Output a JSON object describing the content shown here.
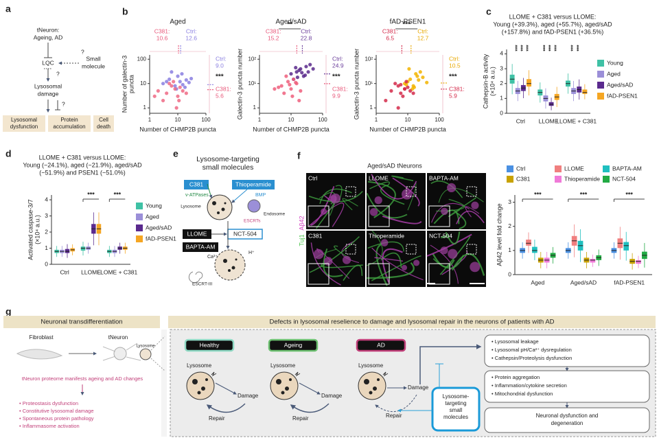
{
  "panel_labels": [
    "a",
    "b",
    "c",
    "d",
    "e",
    "f",
    "g"
  ],
  "a": {
    "top": [
      "tNeuron:",
      "Ageing, AD"
    ],
    "lqc": "LQC",
    "small_molecule": [
      "Small",
      "molecule"
    ],
    "damage": [
      "Lysosomal",
      "damage"
    ],
    "question_marks": [
      "?",
      "?",
      "?"
    ],
    "outcomes": [
      [
        "Lysosomal",
        "dysfunction"
      ],
      [
        "Protein",
        "accumulation"
      ],
      [
        "Cell",
        "death"
      ]
    ]
  },
  "chart_data": [
    {
      "type": "scatter",
      "title": "Aged",
      "x_label": "Number of CHMP2B puncta",
      "y_label": [
        "Number of galectin-3",
        "puncta"
      ],
      "xlog": true,
      "ylog": true,
      "xlim": [
        1,
        100
      ],
      "ylim": [
        0.6,
        150
      ],
      "xticks": [
        1,
        10,
        100
      ],
      "yticks": [
        1,
        10,
        100
      ],
      "top_annotations": [
        {
          "label": "C381:",
          "value": 10.6,
          "color": "#e8587a"
        },
        {
          "label": "Ctrl:",
          "value": 12.6,
          "color": "#8a7fe0"
        }
      ],
      "right_annotations": [
        {
          "label": "Ctrl:",
          "value": 9,
          "value_label": "9.0",
          "color": "#8a7fe0"
        },
        {
          "label": "C381:",
          "value": 5.6,
          "color": "#e8587a"
        }
      ],
      "right_stars": "***",
      "series": [
        {
          "color": "#8a7fe0",
          "x": [
            3,
            5,
            8,
            10,
            12,
            15,
            20,
            6,
            9,
            25,
            14,
            4,
            18,
            30
          ],
          "values": [
            10,
            15,
            8,
            20,
            12,
            9,
            14,
            30,
            6,
            11,
            25,
            12,
            7,
            16
          ]
        },
        {
          "color": "#ee6a85",
          "x": [
            2,
            4,
            6,
            8,
            10,
            12,
            3,
            5,
            15,
            9,
            7,
            20,
            1.5,
            11
          ],
          "values": [
            5,
            4,
            8,
            6,
            3,
            7,
            2,
            10,
            5,
            1,
            12,
            4,
            3,
            2
          ]
        }
      ]
    },
    {
      "type": "scatter",
      "title": "Aged/sAD",
      "x_label": "Number of CHMP2B puncta",
      "y_label": "Galectin-3 puncta number",
      "xlog": true,
      "ylog": true,
      "xlim": [
        1,
        100
      ],
      "ylim": [
        0.6,
        150
      ],
      "xticks": [
        1,
        10,
        100
      ],
      "yticks": [
        1,
        {
          "value": 10,
          "label": "10¹"
        },
        {
          "value": 100,
          "label": "10²"
        }
      ],
      "top_annotations": [
        {
          "label": "C381:",
          "value": 15.2,
          "color": "#e8587a"
        },
        {
          "label": "Ctrl:",
          "value": 22.8,
          "color": "#6a3d9a"
        }
      ],
      "top_stars": "**",
      "right_annotations": [
        {
          "label": "Ctrl:",
          "value": 24.9,
          "color": "#6a3d9a"
        },
        {
          "label": "C381:",
          "value": 9.9,
          "color": "#e8587a"
        }
      ],
      "right_stars": "***",
      "series": [
        {
          "color": "#5b2a8c",
          "x": [
            10,
            15,
            20,
            25,
            30,
            12,
            18,
            40,
            22,
            14,
            28,
            35,
            16,
            50
          ],
          "values": [
            25,
            30,
            40,
            20,
            50,
            15,
            35,
            60,
            28,
            45,
            22,
            30,
            18,
            40
          ]
        },
        {
          "color": "#ee5f7d",
          "x": [
            5,
            8,
            10,
            12,
            15,
            6,
            9,
            20,
            7,
            11,
            4,
            14,
            18,
            3
          ],
          "values": [
            8,
            12,
            6,
            15,
            10,
            4,
            9,
            5,
            20,
            3,
            7,
            11,
            2,
            6
          ]
        }
      ]
    },
    {
      "type": "scatter",
      "title": "fAD-PSEN1",
      "x_label": "Number of CHMP2B puncta",
      "y_label": "Galectin-3 puncta number",
      "xlog": true,
      "ylog": true,
      "xlim": [
        1,
        100
      ],
      "ylim": [
        0.6,
        150
      ],
      "xticks": [
        1,
        10,
        100
      ],
      "yticks": [
        1,
        {
          "value": 10,
          "label": "10¹"
        },
        {
          "value": 100,
          "label": "10²"
        }
      ],
      "top_annotations": [
        {
          "label": "C381:",
          "value": 6.5,
          "color": "#d42a4a"
        },
        {
          "label": "Ctrl:",
          "value": 12.7,
          "color": "#e8a800"
        }
      ],
      "top_stars": "***",
      "right_annotations": [
        {
          "label": "Ctrl:",
          "value": 10.5,
          "color": "#e8a800"
        },
        {
          "label": "C381:",
          "value": 5.9,
          "color": "#d42a4a"
        }
      ],
      "right_stars": "***",
      "series": [
        {
          "color": "#f2b400",
          "x": [
            8,
            12,
            15,
            20,
            10,
            25,
            30,
            14,
            18,
            9,
            22,
            40,
            11,
            16
          ],
          "values": [
            10,
            15,
            8,
            20,
            12,
            30,
            18,
            6,
            25,
            9,
            14,
            11,
            40,
            7
          ]
        },
        {
          "color": "#d42a4a",
          "x": [
            3,
            5,
            6,
            8,
            4,
            7,
            10,
            12,
            2,
            9,
            5,
            6,
            15,
            8
          ],
          "values": [
            5,
            8,
            4,
            6,
            10,
            3,
            7,
            5,
            2,
            12,
            1,
            9,
            4,
            6
          ]
        }
      ]
    },
    {
      "type": "box",
      "title": [
        "LLOME + C381 versus LLOME:",
        "Young (+39.3%), aged (+55.7%), aged/sAD",
        "(+157.8%) and fAD-PSEN1 (+36.5%)"
      ],
      "y_label": [
        "Cathepsin-B activity",
        "(×10⁴ a.u.)"
      ],
      "ylim": [
        0,
        4.3
      ],
      "yticks": [
        0,
        1,
        2,
        3,
        4
      ],
      "legend": "right",
      "categories": [
        "Ctrl",
        "LLOME",
        "LLOME + C381"
      ],
      "stars": [
        [
          "***",
          "***",
          "***"
        ],
        [
          "***",
          "***",
          "***"
        ],
        [
          "***",
          "***"
        ]
      ],
      "series": [
        {
          "name": "Young",
          "color": "#3fc1a5",
          "q1": [
            2.0,
            1.2,
            1.8
          ],
          "values": [
            2.3,
            1.4,
            2.0
          ],
          "q3": [
            2.6,
            1.6,
            2.2
          ]
        },
        {
          "name": "Aged",
          "color": "#9b8fd8",
          "q1": [
            1.3,
            0.8,
            1.3
          ],
          "values": [
            1.5,
            1.0,
            1.5
          ],
          "q3": [
            1.7,
            1.2,
            1.7
          ]
        },
        {
          "name": "Aged/sAD",
          "color": "#5a2a8e",
          "q1": [
            1.5,
            0.5,
            1.4
          ],
          "values": [
            1.7,
            0.6,
            1.6
          ],
          "q3": [
            1.9,
            0.75,
            1.8
          ]
        },
        {
          "name": "fAD-PSEN1",
          "color": "#f5a623",
          "q1": [
            1.8,
            0.9,
            1.3
          ],
          "values": [
            2.0,
            1.1,
            1.4
          ],
          "q3": [
            2.3,
            1.3,
            1.6
          ]
        }
      ]
    },
    {
      "type": "box",
      "title": [
        "LLOME + C381 versus LLOME:",
        "Young (−24.1%), aged (−21.9%), aged/sAD",
        "(−51.9%) and PSEN1 (−51.0%)"
      ],
      "y_label": [
        "Activated caspase-3/7",
        "(×10⁴ a.u.)"
      ],
      "ylim": [
        0,
        4.3
      ],
      "yticks": [
        0,
        1,
        2,
        3,
        4
      ],
      "legend": "right",
      "categories": [
        "Ctrl",
        "LLOME",
        "LLOME + C381"
      ],
      "stars": [
        null,
        "***",
        "***"
      ],
      "series": [
        {
          "name": "Young",
          "color": "#3fc1a5",
          "q1": [
            0.7,
            0.85,
            0.7
          ],
          "values": [
            0.8,
            1.0,
            0.8
          ],
          "q3": [
            0.9,
            1.1,
            0.9
          ]
        },
        {
          "name": "Aged",
          "color": "#9b8fd8",
          "q1": [
            0.7,
            0.9,
            0.7
          ],
          "values": [
            0.8,
            1.0,
            0.8
          ],
          "q3": [
            0.9,
            1.1,
            0.9
          ]
        },
        {
          "name": "Aged/sAD",
          "color": "#5a2a8e",
          "q1": [
            0.7,
            1.9,
            0.9
          ],
          "values": [
            0.8,
            2.2,
            1.0
          ],
          "q3": [
            0.95,
            2.5,
            1.1
          ]
        },
        {
          "name": "fAD-PSEN1",
          "color": "#f5a623",
          "q1": [
            0.8,
            1.9,
            0.9
          ],
          "values": [
            0.9,
            2.2,
            1.0
          ],
          "q3": [
            1.0,
            2.5,
            1.1
          ]
        }
      ]
    },
    {
      "type": "box",
      "y_label": "Aβ42 level fold change",
      "ylim": [
        0,
        3.3
      ],
      "yticks": [
        0,
        1,
        2,
        3
      ],
      "legend": "top",
      "categories": [
        "Aged",
        "Aged/sAD",
        "fAD-PSEN1"
      ],
      "stars": [
        "***",
        "***",
        "***"
      ],
      "series": [
        {
          "name": "Ctrl",
          "color": "#4a90e2",
          "q1": [
            0.9,
            0.9,
            0.9
          ],
          "values": [
            1.0,
            1.0,
            1.0
          ],
          "q3": [
            1.1,
            1.1,
            1.1
          ]
        },
        {
          "name": "LLOME",
          "color": "#f07f7f",
          "q1": [
            1.2,
            1.2,
            1.1
          ],
          "values": [
            1.3,
            1.4,
            1.3
          ],
          "q3": [
            1.45,
            1.6,
            1.5
          ]
        },
        {
          "name": "BAPTA-AM",
          "color": "#1fbfbf",
          "q1": [
            0.9,
            1.0,
            1.0
          ],
          "values": [
            1.0,
            1.2,
            1.2
          ],
          "q3": [
            1.15,
            1.4,
            1.35
          ]
        },
        {
          "name": "C381",
          "color": "#c8a200",
          "q1": [
            0.5,
            0.5,
            0.45
          ],
          "values": [
            0.6,
            0.6,
            0.55
          ],
          "q3": [
            0.7,
            0.7,
            0.65
          ]
        },
        {
          "name": "Thioperamide",
          "color": "#f07ad8",
          "q1": [
            0.5,
            0.5,
            0.45
          ],
          "values": [
            0.6,
            0.6,
            0.55
          ],
          "q3": [
            0.7,
            0.65,
            0.6
          ]
        },
        {
          "name": "NCT-504",
          "color": "#22aa44",
          "q1": [
            0.7,
            0.6,
            0.65
          ],
          "values": [
            0.8,
            0.7,
            0.8
          ],
          "q3": [
            0.9,
            0.8,
            0.95
          ]
        }
      ]
    }
  ],
  "e": {
    "title": [
      "Lysosome-targeting",
      "small molecules"
    ],
    "c381": "C381",
    "vatpases": "v-ATPases",
    "lysosome": "Lysosome",
    "thioperamide": "Thioperamide",
    "bmp": "BMP",
    "endosome": "Endosome",
    "escrts": "ESCRTs",
    "llome": "LLOME",
    "nct504": "NCT-504",
    "bapta": "BAPTA-AM",
    "ca": "Ca²⁺",
    "h": "H⁺",
    "escrt3": "ESCRT-III"
  },
  "f_images": {
    "title": "Aged/sAD tNeurons",
    "conditions": [
      "Ctrl",
      "LLOME",
      "BAPTA-AM",
      "C381",
      "Thioperamide",
      "NCT-504"
    ],
    "stain": [
      "Aβ42",
      "Tuj1"
    ]
  },
  "g": {
    "left_header": "Neuronal transdifferentiation",
    "right_header": "Defects in lysosomal reselience to damage and lysosomal repair in the neurons of patients with AD",
    "fibroblast": "Fibroblast",
    "tneuron": "tNeuron",
    "lysosome": "Lysosome",
    "proteome": "tNeuron proteome manifests ageing and AD changes",
    "changes": [
      "• Proteostasis dysfunction",
      "• Constitutive lysosomal damage",
      "• Spontaneous protein pathology",
      "• Inflammasome activation"
    ],
    "states": [
      {
        "name": "Healthy",
        "color": "#8fd9c4",
        "lysosome": "Lysosome",
        "damage": "Damage",
        "repair": "Repair"
      },
      {
        "name": "Ageing",
        "color": "#6cc070",
        "lysosome": "Lysosome",
        "damage": "Damage",
        "repair": "Repair"
      },
      {
        "name": "AD",
        "color": "#c2407a",
        "lysosome": "Lysosome",
        "damage": "Damage",
        "repair": "Repair"
      }
    ],
    "molecules": [
      "Lysosome-",
      "targeting",
      "small",
      "molecules"
    ],
    "outcomes": [
      [
        "• Lysosomal leakage",
        "• Lysosomal pH/Ca²⁺ dysregulation",
        "• Cathepsin/Proteolysis dysfunction"
      ],
      [
        "• Protein aggregation",
        "• Inflammation/cytokine secretion",
        "• Mitochondrial dysfunction"
      ],
      [
        "Neuronal dysfunction and",
        "degeneration"
      ]
    ]
  }
}
